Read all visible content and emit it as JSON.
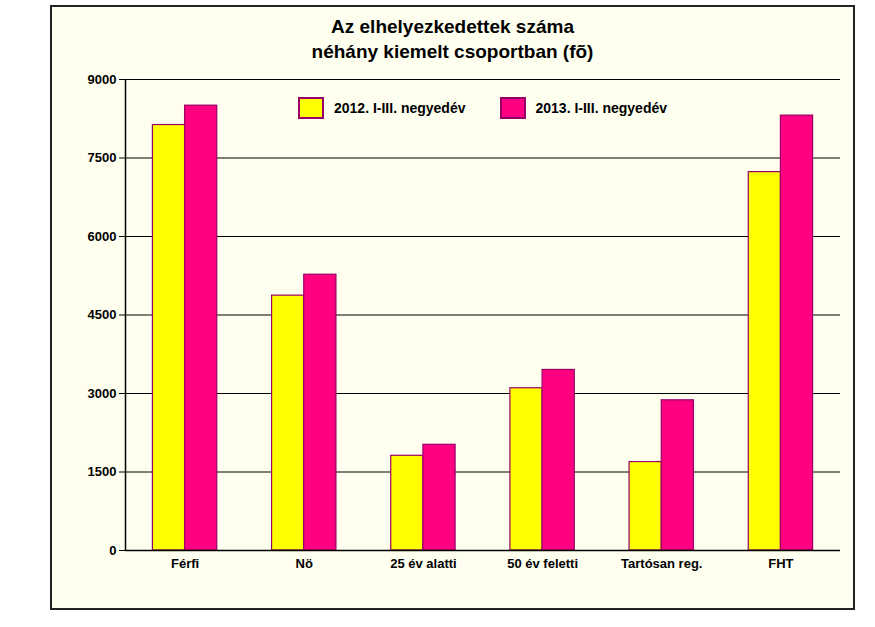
{
  "chart_data": {
    "type": "bar",
    "title": "Az elhelyezkedettek száma",
    "subtitle": "néhány kiemelt csoportban (fõ)",
    "categories": [
      "Férfi",
      "Nö",
      "25 év alatti",
      "50 év feletti",
      "Tartósan reg.",
      "FHT"
    ],
    "series": [
      {
        "name": "2012. I-III. negyedév",
        "color": "#ffff00",
        "values": [
          8130,
          4870,
          1810,
          3100,
          1690,
          7230
        ]
      },
      {
        "name": "2013. I-III. negyedév",
        "color": "#ff0080",
        "values": [
          8500,
          5270,
          2020,
          3450,
          2870,
          8310
        ]
      }
    ],
    "ylim": [
      0,
      9000
    ],
    "yticks": [
      0,
      1500,
      3000,
      4500,
      6000,
      7500,
      9000
    ],
    "grid": true,
    "legend": "top"
  }
}
